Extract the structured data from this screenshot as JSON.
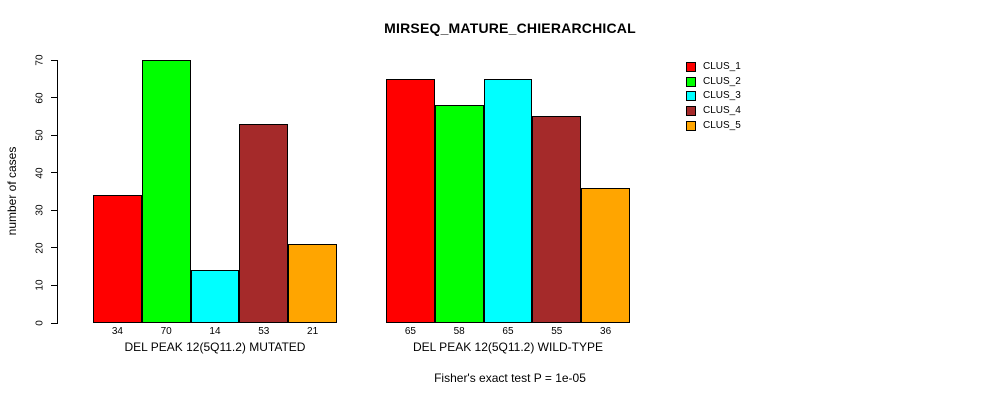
{
  "chart_data": {
    "type": "bar",
    "title": "MIRSEQ_MATURE_CHIERARCHICAL",
    "ylabel": "number of cases",
    "xlabel": "",
    "ylim": [
      0,
      70
    ],
    "yticks": [
      0,
      10,
      20,
      30,
      40,
      50,
      60,
      70
    ],
    "grid": false,
    "legend_position": "right",
    "categories": [
      "DEL PEAK 12(5Q11.2) MUTATED",
      "DEL PEAK 12(5Q11.2) WILD-TYPE"
    ],
    "series": [
      {
        "name": "CLUS_1",
        "color": "#FF0000",
        "values": [
          34,
          65
        ]
      },
      {
        "name": "CLUS_2",
        "color": "#00FF00",
        "values": [
          70,
          58
        ]
      },
      {
        "name": "CLUS_3",
        "color": "#00FFFF",
        "values": [
          14,
          65
        ]
      },
      {
        "name": "CLUS_4",
        "color": "#A52A2A",
        "values": [
          53,
          55
        ]
      },
      {
        "name": "CLUS_5",
        "color": "#FFA500",
        "values": [
          21,
          36
        ]
      }
    ],
    "bar_value_labels": [
      [
        34,
        70,
        14,
        53,
        21
      ],
      [
        65,
        58,
        65,
        55,
        36
      ]
    ],
    "annotation": "Fisher's exact test P = 1e-05"
  }
}
